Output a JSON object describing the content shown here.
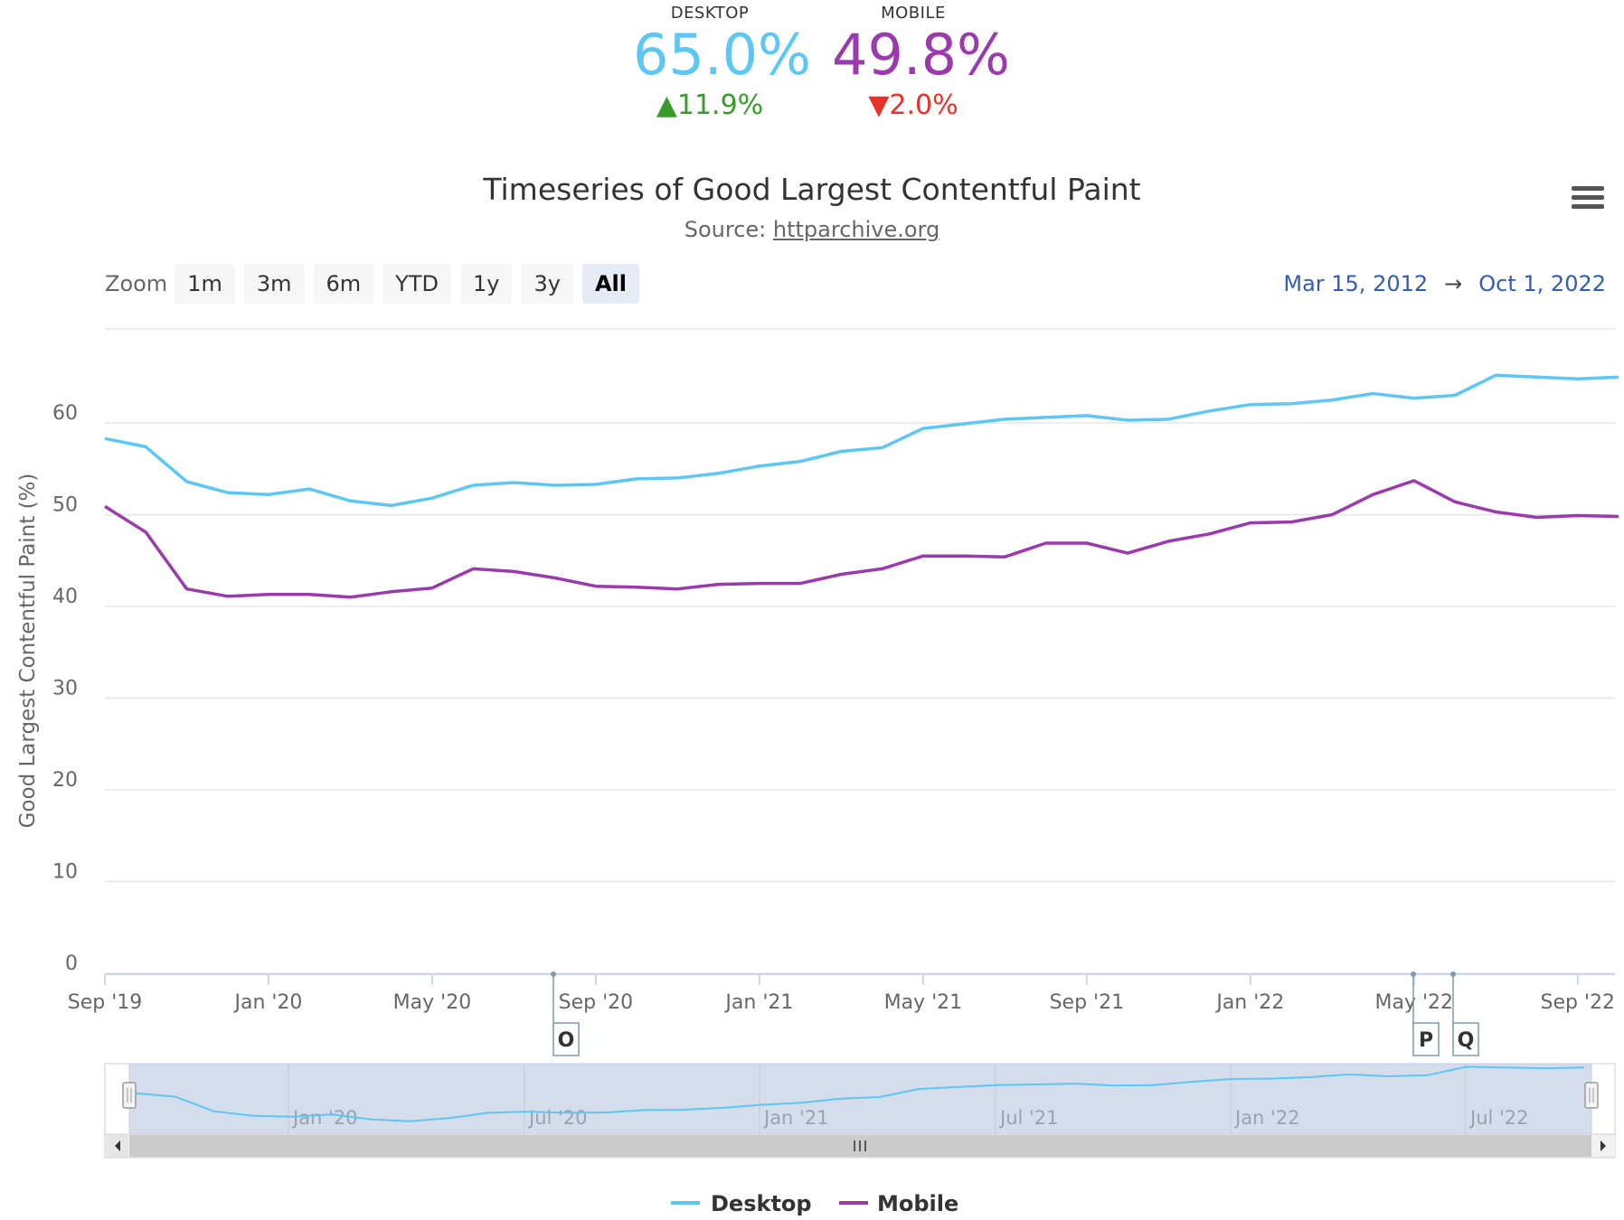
{
  "kpis": {
    "desktop": {
      "label": "DESKTOP",
      "value": "65.0%",
      "delta": "▲11.9%",
      "color": "#5cc6f4"
    },
    "mobile": {
      "label": "MOBILE",
      "value": "49.8%",
      "delta": "▼2.0%",
      "color": "#9a3aad"
    }
  },
  "menu_icon": "hamburger-menu-icon",
  "zoom": {
    "label": "Zoom",
    "buttons": [
      "1m",
      "3m",
      "6m",
      "YTD",
      "1y",
      "3y",
      "All"
    ],
    "active": "All"
  },
  "range": {
    "from": "Mar 15, 2012",
    "arrow": "→",
    "to": "Oct 1, 2022"
  },
  "chart_data": {
    "type": "line",
    "title": "Timeseries of Good Largest Contentful Paint",
    "subtitle_prefix": "Source: ",
    "subtitle_link": "httparchive.org",
    "ylabel": "Good Largest Contentful Paint (%)",
    "xlabel": "",
    "ylim": [
      0,
      70
    ],
    "yticks": [
      0,
      10,
      20,
      30,
      40,
      50,
      60
    ],
    "grid": true,
    "x": [
      "2019-09",
      "2019-10",
      "2019-11",
      "2019-12",
      "2020-01",
      "2020-02",
      "2020-03",
      "2020-04",
      "2020-05",
      "2020-06",
      "2020-07",
      "2020-08",
      "2020-09",
      "2020-10",
      "2020-11",
      "2020-12",
      "2021-01",
      "2021-02",
      "2021-03",
      "2021-04",
      "2021-05",
      "2021-06",
      "2021-07",
      "2021-08",
      "2021-09",
      "2021-10",
      "2021-11",
      "2021-12",
      "2022-01",
      "2022-02",
      "2022-03",
      "2022-04",
      "2022-05",
      "2022-06",
      "2022-07",
      "2022-08",
      "2022-09",
      "2022-10"
    ],
    "xtick_labels": [
      "Sep '19",
      "Jan '20",
      "May '20",
      "Sep '20",
      "Jan '21",
      "May '21",
      "Sep '21",
      "Jan '22",
      "May '22",
      "Sep '22"
    ],
    "xtick_positions": [
      0,
      4,
      8,
      12,
      16,
      20,
      24,
      28,
      32,
      36
    ],
    "series": [
      {
        "name": "Desktop",
        "color": "#5cc6f4",
        "values": [
          58.3,
          57.4,
          53.6,
          52.4,
          52.2,
          52.8,
          51.5,
          51.0,
          51.8,
          53.2,
          53.5,
          53.2,
          53.3,
          53.9,
          54.0,
          54.5,
          55.3,
          55.8,
          56.9,
          57.3,
          59.4,
          59.9,
          60.4,
          60.6,
          60.8,
          60.3,
          60.4,
          61.3,
          62.0,
          62.1,
          62.5,
          63.2,
          62.7,
          63.0,
          65.2,
          65.0,
          64.8,
          65.0
        ]
      },
      {
        "name": "Mobile",
        "color": "#9a3aad",
        "values": [
          50.9,
          48.1,
          41.9,
          41.1,
          41.3,
          41.3,
          41.0,
          41.6,
          42.0,
          44.1,
          43.8,
          43.1,
          42.2,
          42.1,
          41.9,
          42.4,
          42.5,
          42.5,
          43.5,
          44.1,
          45.5,
          45.5,
          45.4,
          46.9,
          46.9,
          45.8,
          47.1,
          47.9,
          49.1,
          49.2,
          50.0,
          52.2,
          53.7,
          51.4,
          50.3,
          49.7,
          49.9,
          49.8
        ]
      }
    ],
    "flags": [
      {
        "label": "O",
        "x": "Sep '20"
      },
      {
        "label": "P",
        "x": "May '22"
      },
      {
        "label": "Q",
        "x": "Jun '22"
      }
    ],
    "navigator_labels": [
      "Jan '20",
      "Jul '20",
      "Jan '21",
      "Jul '21",
      "Jan '22",
      "Jul '22"
    ],
    "navigator_handle_icon": "scroll-grip-icon",
    "legend": [
      "Desktop",
      "Mobile"
    ]
  }
}
